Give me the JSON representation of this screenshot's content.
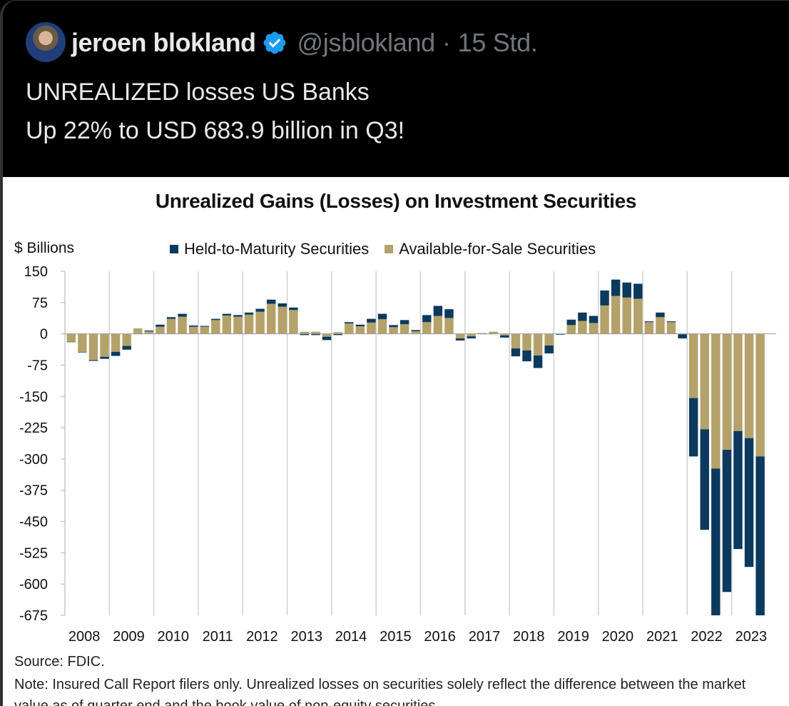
{
  "tweet": {
    "author_name": "jeroen blokland",
    "verified_icon": "verified-badge-icon",
    "handle": "@jsblokland",
    "separator": "·",
    "time_ago": "15 Std.",
    "text_lines": [
      "UNREALIZED losses US Banks",
      "Up 22% to USD 683.9 billion in Q3!"
    ]
  },
  "colors": {
    "htm": "#0b3a5e",
    "afs": "#b5a26a",
    "badge": "#1d9bf0"
  },
  "chart_data": {
    "type": "bar",
    "stacked": true,
    "title": "Unrealized Gains (Losses) on Investment Securities",
    "ylabel": "$ Billions",
    "xlabel": "",
    "ylim": [
      -675,
      150
    ],
    "yticks": [
      150,
      75,
      0,
      -75,
      -150,
      -225,
      -300,
      -375,
      -450,
      -525,
      -600,
      -675
    ],
    "xtick_labels": [
      "2008",
      "2009",
      "2010",
      "2011",
      "2012",
      "2013",
      "2014",
      "2015",
      "2016",
      "2017",
      "2018",
      "2019",
      "2020",
      "2021",
      "2022",
      "2023"
    ],
    "legend": [
      "Held-to-Maturity Securities",
      "Available-for-Sale Securities"
    ],
    "legend_position": "top",
    "grid": "vertical-at-years",
    "categories": [
      "2008Q1",
      "2008Q2",
      "2008Q3",
      "2008Q4",
      "2009Q1",
      "2009Q2",
      "2009Q3",
      "2009Q4",
      "2010Q1",
      "2010Q2",
      "2010Q3",
      "2010Q4",
      "2011Q1",
      "2011Q2",
      "2011Q3",
      "2011Q4",
      "2012Q1",
      "2012Q2",
      "2012Q3",
      "2012Q4",
      "2013Q1",
      "2013Q2",
      "2013Q3",
      "2013Q4",
      "2014Q1",
      "2014Q2",
      "2014Q3",
      "2014Q4",
      "2015Q1",
      "2015Q2",
      "2015Q3",
      "2015Q4",
      "2016Q1",
      "2016Q2",
      "2016Q3",
      "2016Q4",
      "2017Q1",
      "2017Q2",
      "2017Q3",
      "2017Q4",
      "2018Q1",
      "2018Q2",
      "2018Q3",
      "2018Q4",
      "2019Q1",
      "2019Q2",
      "2019Q3",
      "2019Q4",
      "2020Q1",
      "2020Q2",
      "2020Q3",
      "2020Q4",
      "2021Q1",
      "2021Q2",
      "2021Q3",
      "2021Q4",
      "2022Q1",
      "2022Q2",
      "2022Q3",
      "2022Q4",
      "2023Q1",
      "2023Q2",
      "2023Q3"
    ],
    "series": [
      {
        "name": "Available-for-Sale Securities",
        "values": [
          -19,
          -44,
          -63,
          -55,
          -43,
          -29,
          13,
          6,
          17,
          36,
          41,
          17,
          17,
          33,
          44,
          41,
          46,
          53,
          72,
          65,
          57,
          5,
          5,
          -7,
          4,
          25,
          18,
          27,
          35,
          16,
          23,
          6,
          28,
          43,
          38,
          -11,
          -6,
          2,
          5,
          -4,
          -35,
          -40,
          -52,
          -28,
          0,
          21,
          31,
          26,
          68,
          91,
          87,
          84,
          28,
          40,
          28,
          -1,
          -154,
          -229,
          -323,
          -278,
          -233,
          -250,
          -294
        ]
      },
      {
        "name": "Held-to-Maturity Securities",
        "values": [
          -1,
          -1,
          -2,
          -5,
          -10,
          -9,
          0,
          2,
          5,
          4,
          7,
          3,
          2,
          3,
          4,
          4,
          5,
          7,
          10,
          8,
          6,
          -3,
          -3,
          -8,
          -3,
          3,
          4,
          9,
          13,
          5,
          10,
          3,
          17,
          24,
          21,
          -5,
          -5,
          0,
          0,
          -5,
          -19,
          -26,
          -30,
          -19,
          -2,
          13,
          20,
          17,
          36,
          39,
          36,
          36,
          2,
          11,
          2,
          -10,
          -140,
          -241,
          -367,
          -341,
          -283,
          -309,
          -390
        ]
      }
    ]
  },
  "source": "Source: FDIC.",
  "note": "Note: Insured Call Report filers only. Unrealized losses on securities solely reflect the difference between the market value as of quarter end and the book value of non-equity securities."
}
